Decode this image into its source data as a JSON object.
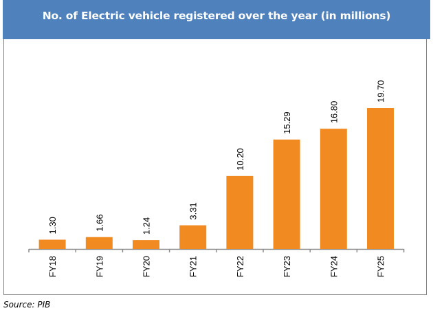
{
  "header": {
    "title": "No. of Electric vehicle registered over the year (in millions)"
  },
  "source": "Source: PIB",
  "colors": {
    "header_bg": "#4f81bd",
    "bar": "#f28a22",
    "axis": "#8c8c8c"
  },
  "chart_data": {
    "type": "bar",
    "title": "No. of Electric vehicle registered over the year (in millions)",
    "xlabel": "",
    "ylabel": "",
    "categories": [
      "FY18",
      "FY19",
      "FY20",
      "FY21",
      "FY22",
      "FY23",
      "FY24",
      "FY25"
    ],
    "values": [
      1.3,
      1.66,
      1.24,
      3.31,
      10.2,
      15.29,
      16.8,
      19.7
    ],
    "data_labels": [
      "1.30",
      "1.66",
      "1.24",
      "3.31",
      "10.20",
      "15.29",
      "16.80",
      "19.70"
    ],
    "ylim": [
      0,
      19.7
    ],
    "grid": false,
    "legend": "none",
    "label_rotation": "vertical"
  }
}
